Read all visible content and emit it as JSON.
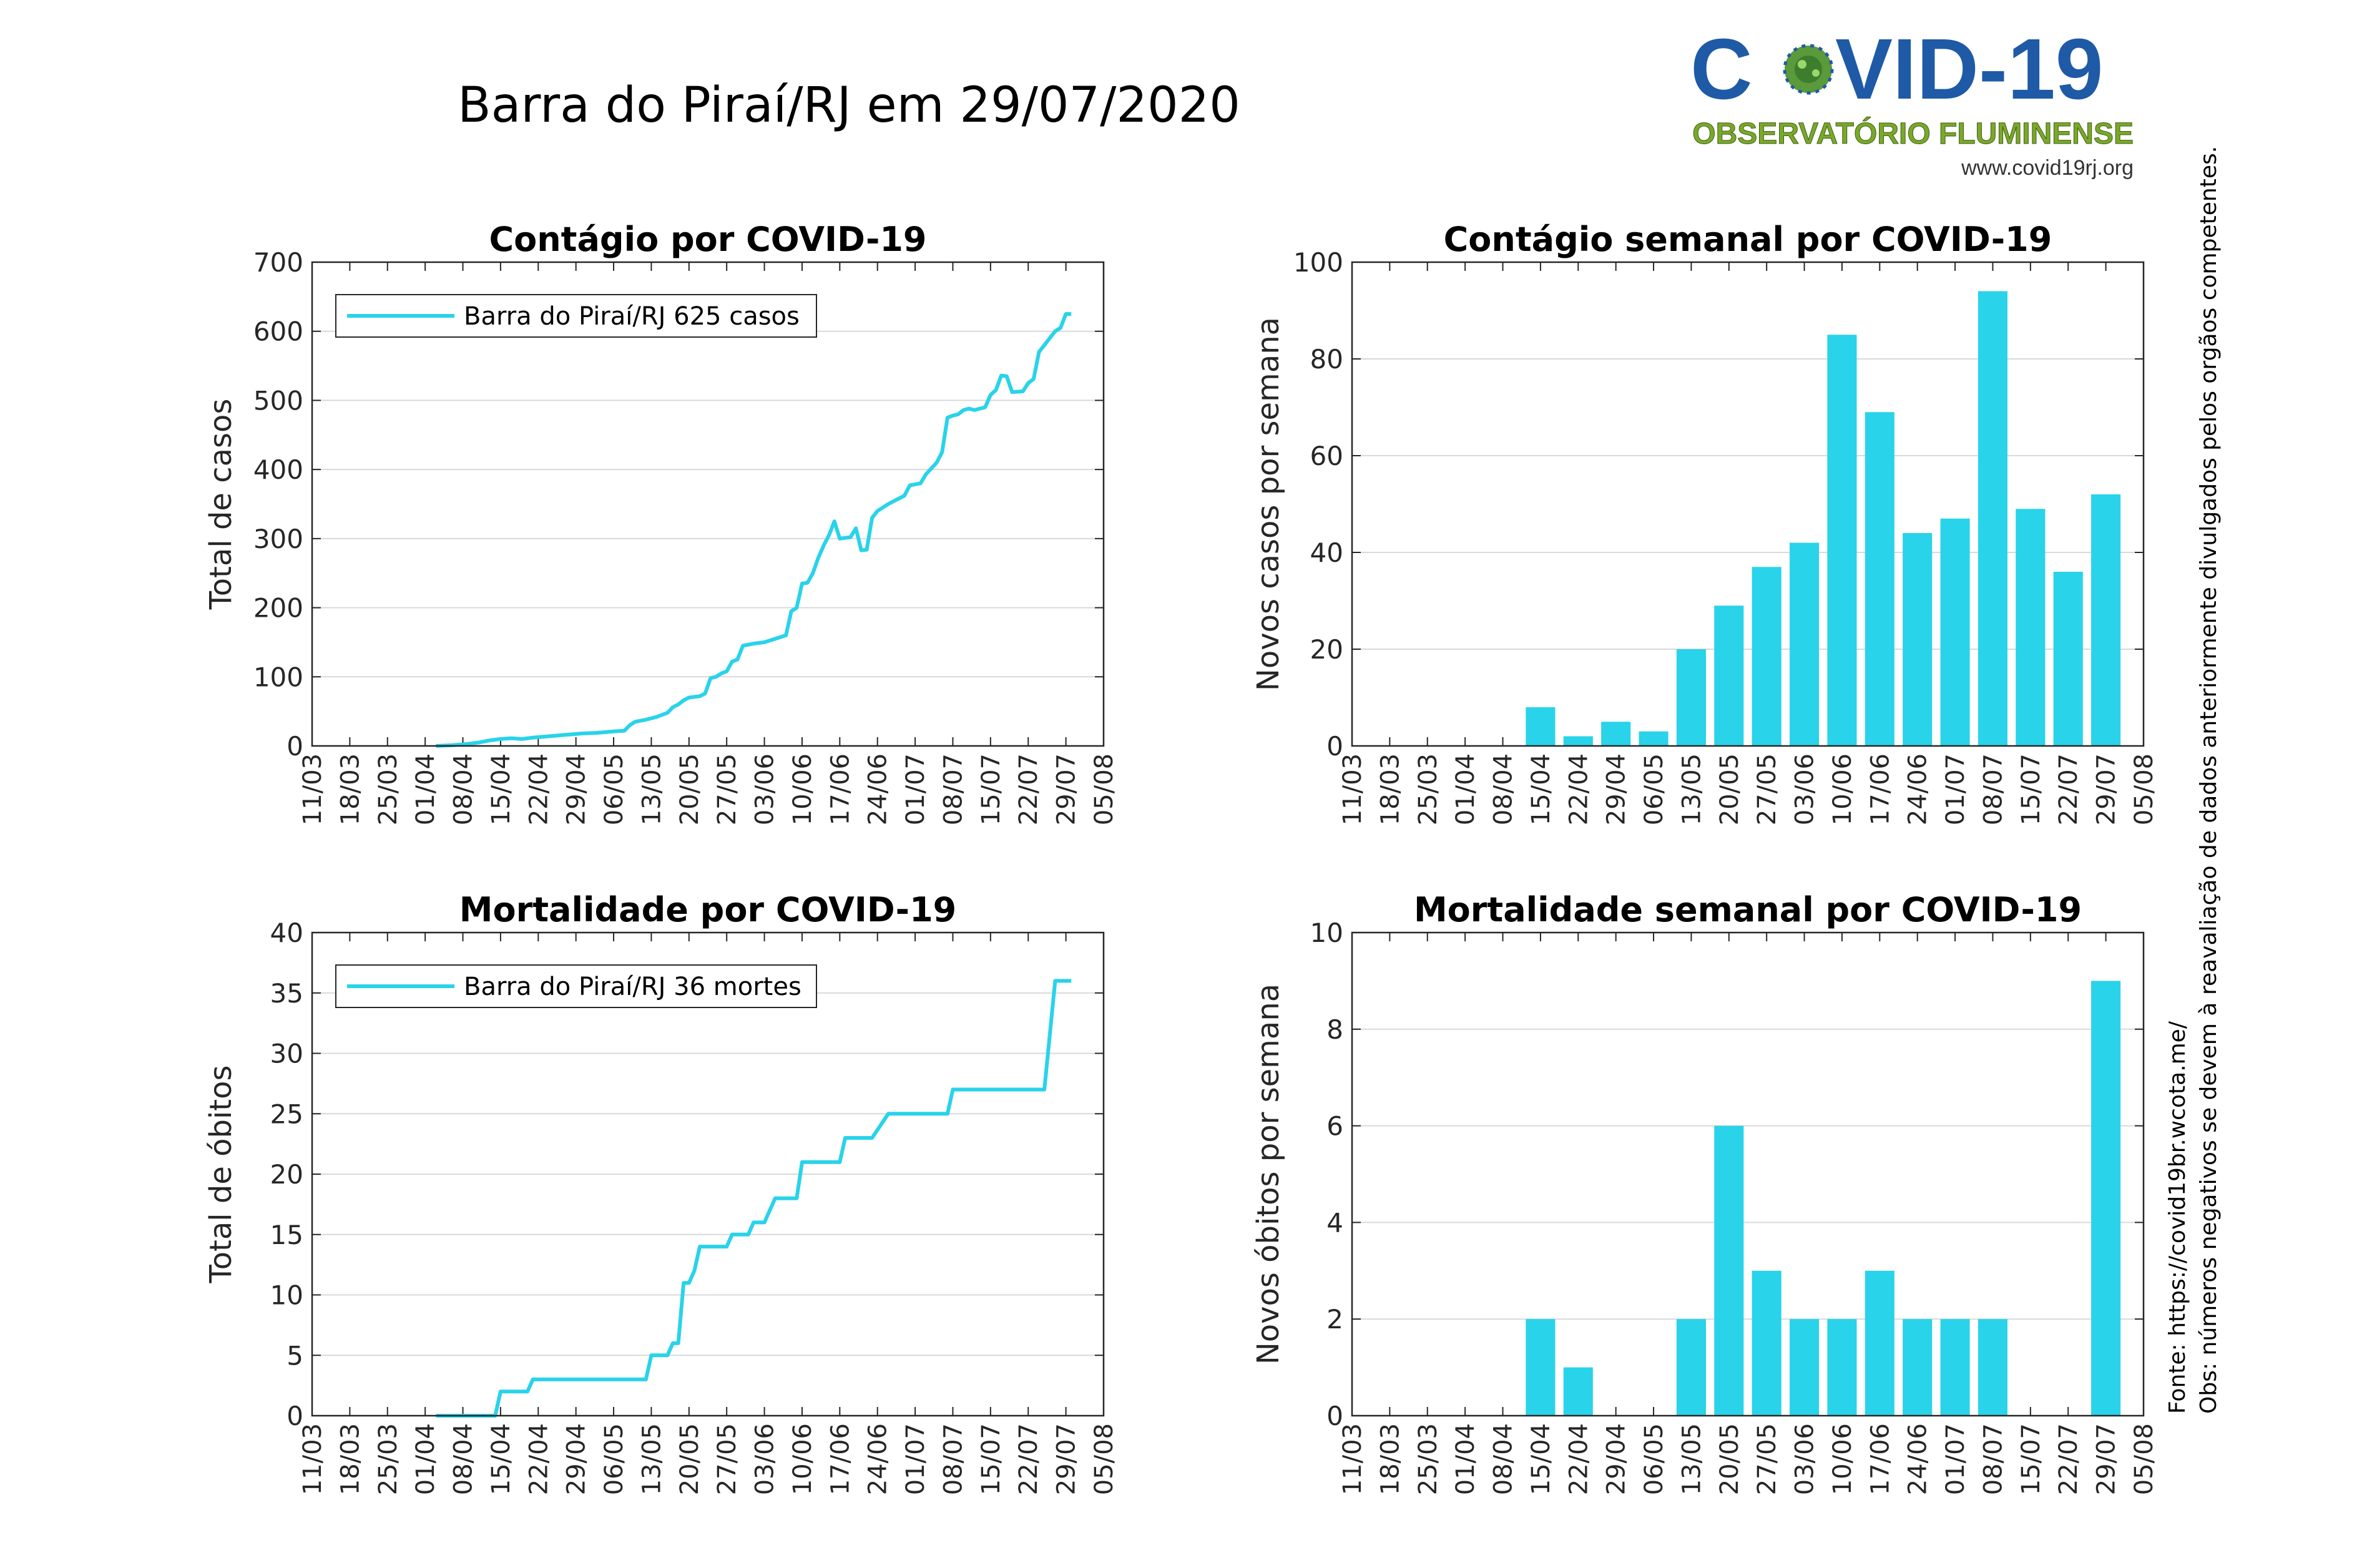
{
  "page_title": "Barra do Piraí/RJ em 29/07/2020",
  "logo": {
    "name_left": "C",
    "name_right": "VID-19",
    "subtitle": "OBSERVATÓRIO FLUMINENSE",
    "url": "www.covid19rj.org",
    "colors": {
      "blue": "#1f5aa6",
      "green": "#7aa82a",
      "virus": "#5a9a3a"
    }
  },
  "side_notes": {
    "source": "Fonte: https://covid19br.wcota.me/",
    "note": "Obs: números negativos se devem à reavaliação de dados anteriormente divulgados pelos orgãos competentes."
  },
  "colors": {
    "series": "#29d3ea",
    "grid": "#d9d9d9",
    "axis": "#262626"
  },
  "x_ticks": [
    "11/03",
    "18/03",
    "25/03",
    "01/04",
    "08/04",
    "15/04",
    "22/04",
    "29/04",
    "06/05",
    "13/05",
    "20/05",
    "27/05",
    "03/06",
    "10/06",
    "17/06",
    "24/06",
    "01/07",
    "08/07",
    "15/07",
    "22/07",
    "29/07",
    "05/08"
  ],
  "chart_data": [
    {
      "type": "line",
      "title": "Contágio por COVID-19",
      "ylabel": "Total de casos",
      "xlabel": "",
      "ylim": [
        0,
        700
      ],
      "yticks": [
        "0",
        "100",
        "200",
        "300",
        "400",
        "500",
        "600",
        "700"
      ],
      "legend": "Barra do Piraí/RJ  625 casos",
      "legend_position": "top-left",
      "grid": true,
      "x_range": [
        "11/03/2020",
        "05/08/2020"
      ],
      "series": [
        {
          "name": "Barra do Piraí/RJ",
          "points": [
            [
              "03/04/2020",
              0
            ],
            [
              "06/04/2020",
              1
            ],
            [
              "09/04/2020",
              3
            ],
            [
              "11/04/2020",
              5
            ],
            [
              "13/04/2020",
              8
            ],
            [
              "15/04/2020",
              10
            ],
            [
              "17/04/2020",
              11
            ],
            [
              "19/04/2020",
              10
            ],
            [
              "21/04/2020",
              12
            ],
            [
              "24/04/2020",
              14
            ],
            [
              "27/04/2020",
              16
            ],
            [
              "30/04/2020",
              18
            ],
            [
              "03/05/2020",
              19
            ],
            [
              "06/05/2020",
              21
            ],
            [
              "08/05/2020",
              22
            ],
            [
              "09/05/2020",
              30
            ],
            [
              "10/05/2020",
              35
            ],
            [
              "12/05/2020",
              38
            ],
            [
              "14/05/2020",
              42
            ],
            [
              "16/05/2020",
              48
            ],
            [
              "17/05/2020",
              56
            ],
            [
              "18/05/2020",
              60
            ],
            [
              "19/05/2020",
              66
            ],
            [
              "20/05/2020",
              70
            ],
            [
              "22/05/2020",
              72
            ],
            [
              "23/05/2020",
              76
            ],
            [
              "24/05/2020",
              98
            ],
            [
              "25/05/2020",
              100
            ],
            [
              "26/05/2020",
              105
            ],
            [
              "27/05/2020",
              108
            ],
            [
              "28/05/2020",
              122
            ],
            [
              "29/05/2020",
              125
            ],
            [
              "30/05/2020",
              145
            ],
            [
              "01/06/2020",
              148
            ],
            [
              "03/06/2020",
              150
            ],
            [
              "05/06/2020",
              155
            ],
            [
              "07/06/2020",
              160
            ],
            [
              "08/06/2020",
              195
            ],
            [
              "09/06/2020",
              200
            ],
            [
              "10/06/2020",
              235
            ],
            [
              "11/06/2020",
              236
            ],
            [
              "12/06/2020",
              250
            ],
            [
              "13/06/2020",
              272
            ],
            [
              "14/06/2020",
              290
            ],
            [
              "15/06/2020",
              305
            ],
            [
              "16/06/2020",
              325
            ],
            [
              "17/06/2020",
              300
            ],
            [
              "19/06/2020",
              302
            ],
            [
              "20/06/2020",
              315
            ],
            [
              "21/06/2020",
              283
            ],
            [
              "22/06/2020",
              284
            ],
            [
              "23/06/2020",
              330
            ],
            [
              "24/06/2020",
              340
            ],
            [
              "26/06/2020",
              350
            ],
            [
              "28/06/2020",
              358
            ],
            [
              "29/06/2020",
              362
            ],
            [
              "30/06/2020",
              377
            ],
            [
              "02/07/2020",
              380
            ],
            [
              "03/07/2020",
              393
            ],
            [
              "05/07/2020",
              410
            ],
            [
              "06/07/2020",
              425
            ],
            [
              "07/07/2020",
              475
            ],
            [
              "08/07/2020",
              478
            ],
            [
              "09/07/2020",
              480
            ],
            [
              "10/07/2020",
              486
            ],
            [
              "11/07/2020",
              488
            ],
            [
              "12/07/2020",
              486
            ],
            [
              "14/07/2020",
              490
            ],
            [
              "15/07/2020",
              508
            ],
            [
              "16/07/2020",
              515
            ],
            [
              "17/07/2020",
              536
            ],
            [
              "18/07/2020",
              535
            ],
            [
              "19/07/2020",
              512
            ],
            [
              "21/07/2020",
              513
            ],
            [
              "22/07/2020",
              525
            ],
            [
              "23/07/2020",
              531
            ],
            [
              "24/07/2020",
              570
            ],
            [
              "25/07/2020",
              580
            ],
            [
              "26/07/2020",
              590
            ],
            [
              "27/07/2020",
              600
            ],
            [
              "28/07/2020",
              605
            ],
            [
              "29/07/2020",
              625
            ],
            [
              "30/07/2020",
              625
            ]
          ]
        }
      ]
    },
    {
      "type": "bar",
      "title": "Contágio semanal por COVID-19",
      "ylabel": "Novos casos por semana",
      "xlabel": "",
      "ylim": [
        0,
        100
      ],
      "yticks": [
        "0",
        "20",
        "40",
        "60",
        "80",
        "100"
      ],
      "grid": true,
      "categories": [
        "15/04",
        "22/04",
        "29/04",
        "06/05",
        "13/05",
        "20/05",
        "27/05",
        "03/06",
        "10/06",
        "17/06",
        "24/06",
        "01/07",
        "08/07",
        "15/07",
        "22/07",
        "29/07"
      ],
      "values": [
        8,
        2,
        5,
        3,
        20,
        29,
        37,
        42,
        85,
        69,
        44,
        47,
        94,
        49,
        36,
        52
      ]
    },
    {
      "type": "line",
      "title": "Mortalidade por COVID-19",
      "ylabel": "Total de óbitos",
      "xlabel": "",
      "ylim": [
        0,
        40
      ],
      "yticks": [
        "0",
        "5",
        "10",
        "15",
        "20",
        "25",
        "30",
        "35",
        "40"
      ],
      "legend": "Barra do Piraí/RJ  36 mortes",
      "legend_position": "top-left",
      "grid": true,
      "x_range": [
        "11/03/2020",
        "05/08/2020"
      ],
      "series": [
        {
          "name": "Barra do Piraí/RJ",
          "points": [
            [
              "03/04/2020",
              0
            ],
            [
              "14/04/2020",
              0
            ],
            [
              "15/04/2020",
              2
            ],
            [
              "20/04/2020",
              2
            ],
            [
              "21/04/2020",
              3
            ],
            [
              "12/05/2020",
              3
            ],
            [
              "13/05/2020",
              5
            ],
            [
              "16/05/2020",
              5
            ],
            [
              "17/05/2020",
              6
            ],
            [
              "18/05/2020",
              6
            ],
            [
              "19/05/2020",
              11
            ],
            [
              "20/05/2020",
              11
            ],
            [
              "21/05/2020",
              12
            ],
            [
              "22/05/2020",
              14
            ],
            [
              "27/05/2020",
              14
            ],
            [
              "28/05/2020",
              15
            ],
            [
              "31/05/2020",
              15
            ],
            [
              "01/06/2020",
              16
            ],
            [
              "03/06/2020",
              16
            ],
            [
              "05/06/2020",
              18
            ],
            [
              "09/06/2020",
              18
            ],
            [
              "10/06/2020",
              21
            ],
            [
              "17/06/2020",
              21
            ],
            [
              "18/06/2020",
              23
            ],
            [
              "23/06/2020",
              23
            ],
            [
              "26/06/2020",
              25
            ],
            [
              "07/07/2020",
              25
            ],
            [
              "08/07/2020",
              27
            ],
            [
              "25/07/2020",
              27
            ],
            [
              "27/07/2020",
              36
            ],
            [
              "30/07/2020",
              36
            ]
          ]
        }
      ]
    },
    {
      "type": "bar",
      "title": "Mortalidade semanal por COVID-19",
      "ylabel": "Novos óbitos por semana",
      "xlabel": "",
      "ylim": [
        0,
        10
      ],
      "yticks": [
        "0",
        "2",
        "4",
        "6",
        "8",
        "10"
      ],
      "grid": true,
      "categories": [
        "15/04",
        "22/04",
        "29/04",
        "06/05",
        "13/05",
        "20/05",
        "27/05",
        "03/06",
        "10/06",
        "17/06",
        "24/06",
        "01/07",
        "08/07",
        "15/07",
        "22/07",
        "29/07"
      ],
      "values": [
        2,
        1,
        0,
        0,
        2,
        6,
        3,
        2,
        2,
        3,
        2,
        2,
        2,
        0,
        0,
        9
      ]
    }
  ]
}
